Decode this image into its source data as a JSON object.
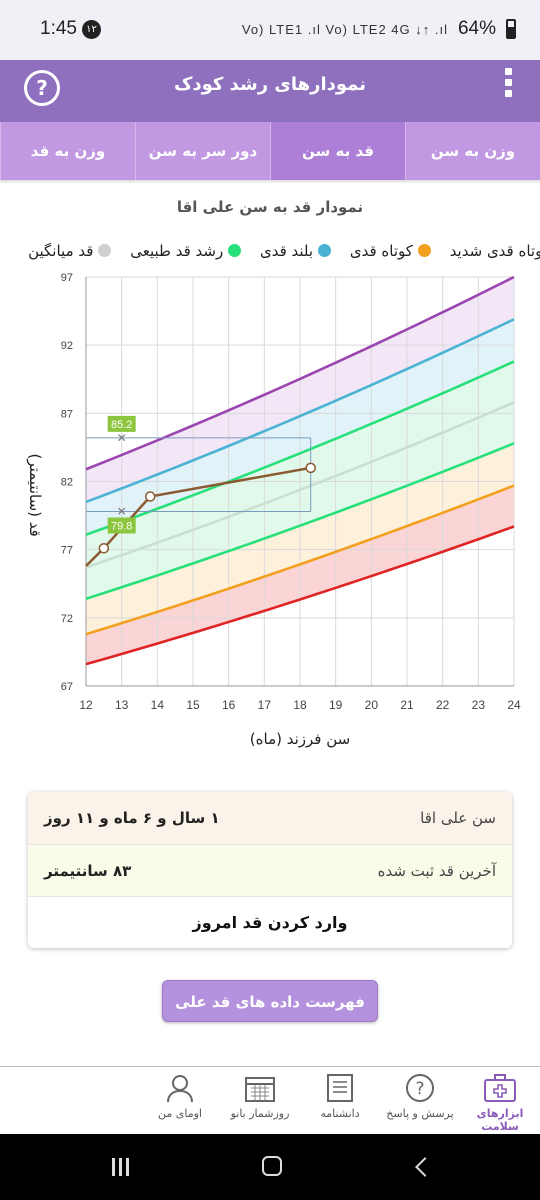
{
  "status_bar": {
    "time": "1:45",
    "notification_badge": "۱۲",
    "network_icons": "Vo) LTE1 .ıl Vo) LTE2 4G ↓↑ .ıl",
    "battery": "64%"
  },
  "app_bar": {
    "title": "نمودارهای رشد کودک",
    "help_icon": "question-circle-icon",
    "menu_icon": "vertical-dots-icon"
  },
  "tabs": [
    {
      "label": "وزن به سن",
      "active": false
    },
    {
      "label": "قد به سن",
      "active": true
    },
    {
      "label": "دور سر به سن",
      "active": false
    },
    {
      "label": "وزن به قد",
      "active": false
    }
  ],
  "chart_title": "نمودار قد به سن علی اقا",
  "legend": [
    {
      "label": "کوتاه قدی شدید",
      "color": "#9b45b0"
    },
    {
      "label": "کوتاه قدی",
      "color": "#f2a01e"
    },
    {
      "label": "بلند قدی",
      "color": "#4ab3d3"
    },
    {
      "label": "رشد قد طبیعی",
      "color": "#27e07a"
    },
    {
      "label": "قد میانگین",
      "color": "#d0d0d0"
    }
  ],
  "chart_data": {
    "type": "line",
    "xlabel": "سن فرزند (ماه)",
    "ylabel": "قد (سانتیمتر)",
    "xlim": [
      12,
      24
    ],
    "ylim": [
      67,
      97
    ],
    "x_ticks": [
      12,
      13,
      14,
      15,
      16,
      17,
      18,
      19,
      20,
      21,
      22,
      23,
      24
    ],
    "y_ticks": [
      67,
      72,
      77,
      82,
      87,
      92,
      97
    ],
    "grid": true,
    "reference_curves": [
      {
        "color": "#e02424",
        "start": 68.6,
        "end": 78.7
      },
      {
        "color": "#f2a01e",
        "start": 70.8,
        "end": 81.7
      },
      {
        "color": "#27e07a",
        "start": 73.4,
        "end": 84.8
      },
      {
        "color": "#c8dfd0",
        "start": 75.7,
        "end": 87.8
      },
      {
        "color": "#27e07a",
        "start": 78.1,
        "end": 90.8
      },
      {
        "color": "#4ab3d3",
        "start": 80.5,
        "end": 93.9
      },
      {
        "color": "#9b45b0",
        "start": 82.9,
        "end": 97.0
      }
    ],
    "bands": [
      {
        "from": 0,
        "to": 1,
        "color": "#f7b3b3"
      },
      {
        "from": 1,
        "to": 2,
        "color": "#fde6bf"
      },
      {
        "from": 2,
        "to": 4,
        "color": "#c9f4db"
      },
      {
        "from": 4,
        "to": 5,
        "color": "#c8e9f3"
      },
      {
        "from": 5,
        "to": 6,
        "color": "#e9d4f0"
      }
    ],
    "child_series": {
      "color": "#8a5a33",
      "points": [
        {
          "x": 12.0,
          "y": 75.8,
          "marker": false
        },
        {
          "x": 12.5,
          "y": 77.1,
          "marker": true
        },
        {
          "x": 13.8,
          "y": 80.9,
          "marker": true
        },
        {
          "x": 18.3,
          "y": 83.0,
          "marker": true
        }
      ]
    },
    "annotations": [
      {
        "x": 13.0,
        "y": 85.2,
        "label": "85.2"
      },
      {
        "x": 13.0,
        "y": 79.8,
        "label": "79.8"
      }
    ],
    "crosshair": {
      "x": 18.3,
      "y1": 85.2,
      "y2": 79.8
    }
  },
  "info_card": {
    "age_label": "سن علی اقا",
    "age_value": "۱ سال و ۶ ماه و ۱۱ روز",
    "last_height_label": "آخرین قد ثبت شده",
    "last_height_value": "۸۳ سانتیمتر",
    "enter_height_button": "وارد کردن قد امروز"
  },
  "list_button": "فهرست داده های قد علی اقا",
  "bottom_nav": [
    {
      "label": "ابزارهای سلامت",
      "icon": "medical-kit-icon",
      "active": true
    },
    {
      "label": "پرسش و پاسخ",
      "icon": "question-bubble-icon",
      "active": false
    },
    {
      "label": "دانشنامه",
      "icon": "book-icon",
      "active": false
    },
    {
      "label": "روزشمار بانو",
      "icon": "calendar-icon",
      "active": false
    },
    {
      "label": "اومای من",
      "icon": "user-icon",
      "active": false
    }
  ]
}
